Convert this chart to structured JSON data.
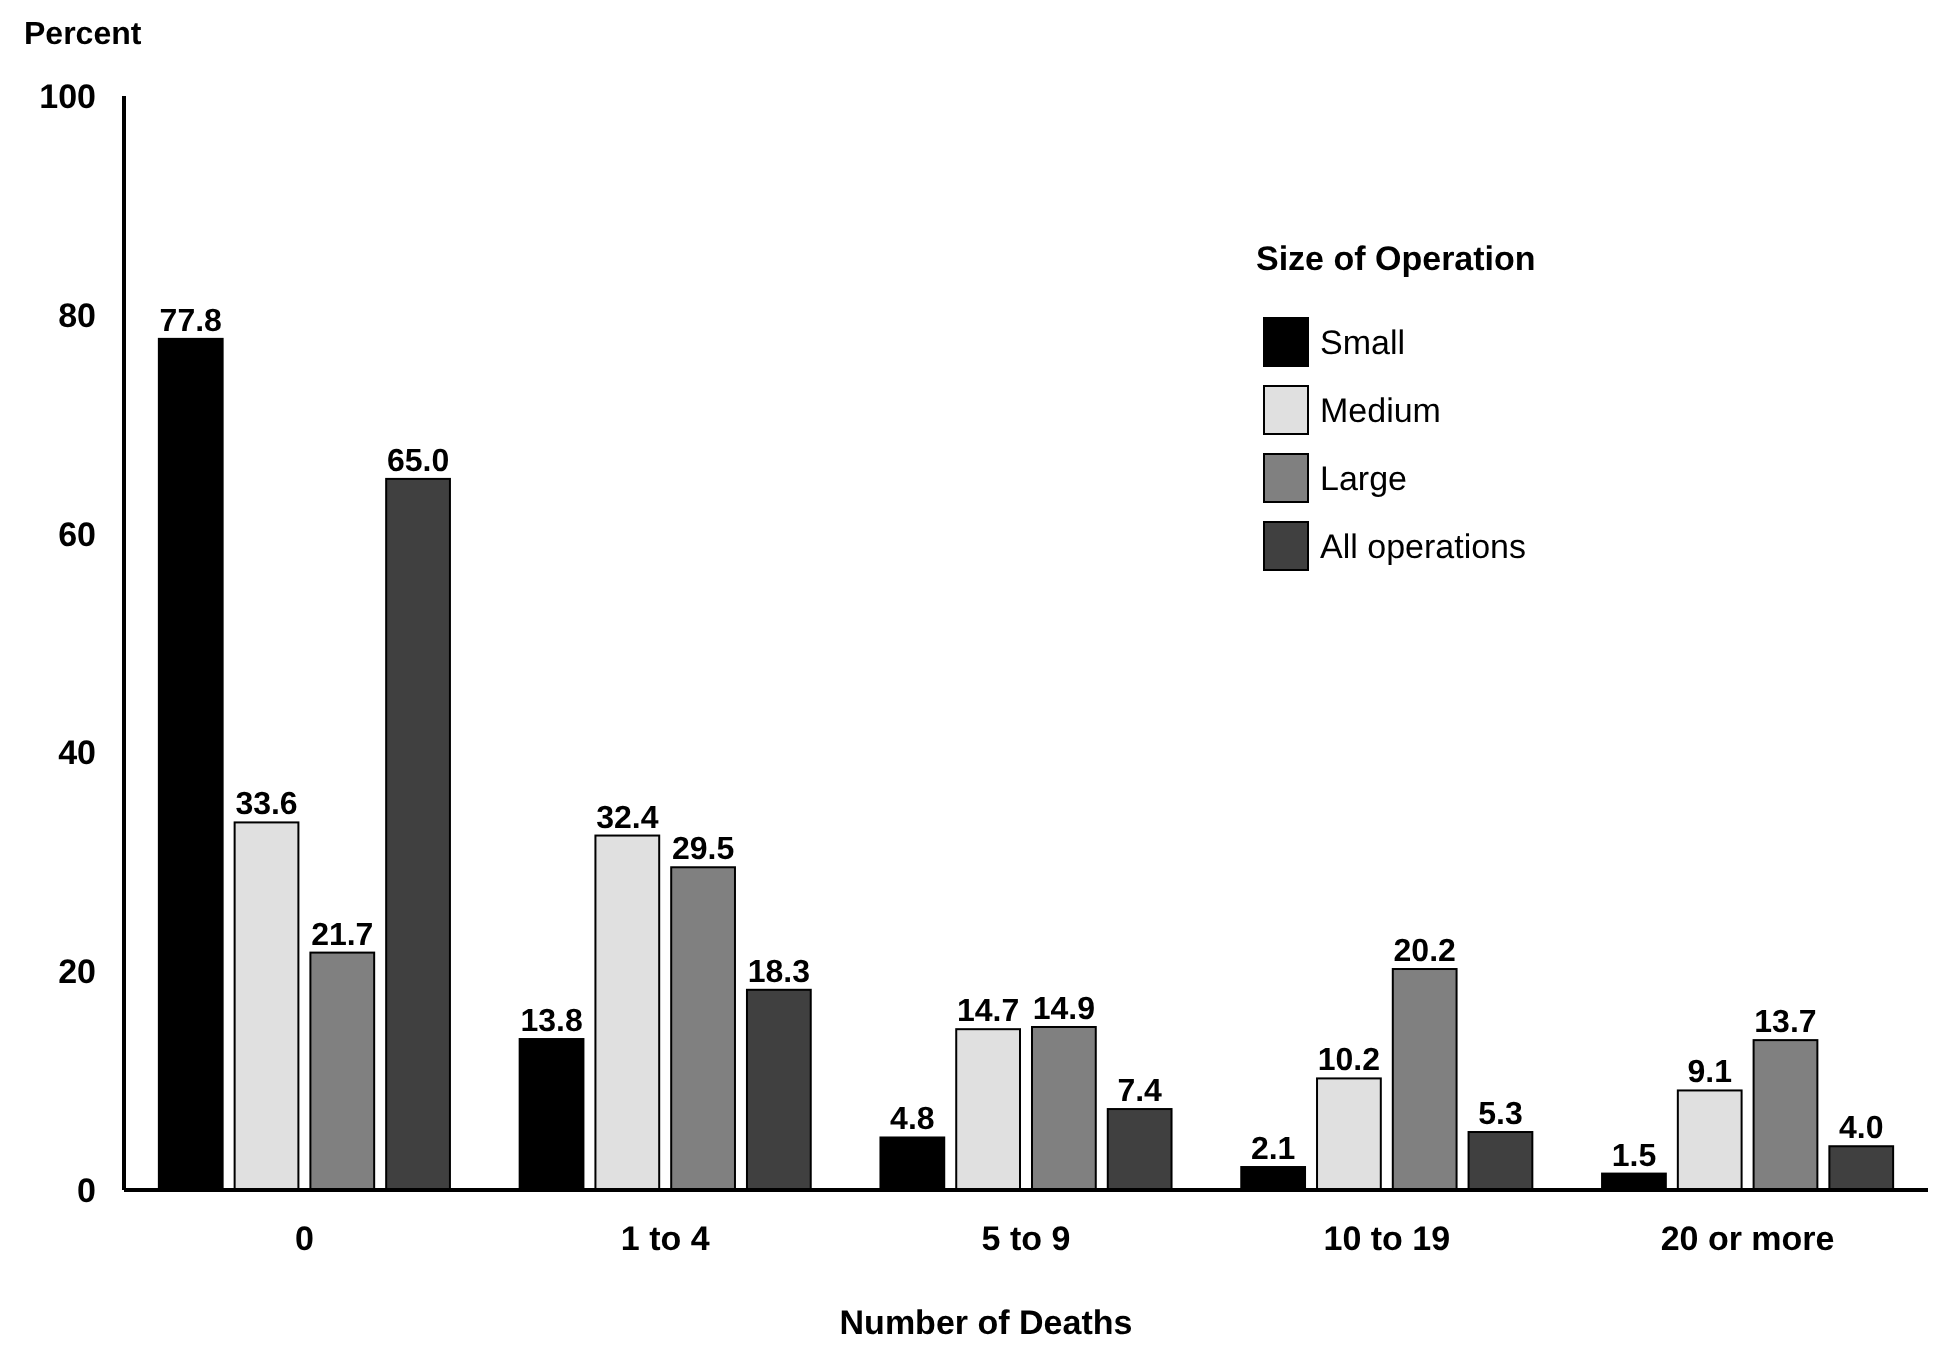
{
  "chart_data": {
    "type": "bar",
    "xlabel": "Number of Deaths",
    "ylabel": "Percent",
    "legend_title": "Size of Operation",
    "categories": [
      "0",
      "1 to 4",
      "5 to 9",
      "10 to 19",
      "20 or more"
    ],
    "series": [
      {
        "name": "Small",
        "color": "#000000",
        "values": [
          77.8,
          13.8,
          4.8,
          2.1,
          1.5
        ],
        "value_labels": [
          "77.8",
          "13.8",
          "4.8",
          "2.1",
          "1.5"
        ]
      },
      {
        "name": "Medium",
        "color": "#e0e0e0",
        "values": [
          33.6,
          32.4,
          14.7,
          10.2,
          9.1
        ],
        "value_labels": [
          "33.6",
          "32.4",
          "14.7",
          "10.2",
          "9.1"
        ]
      },
      {
        "name": "Large",
        "color": "#808080",
        "values": [
          21.7,
          29.5,
          14.9,
          20.2,
          13.7
        ],
        "value_labels": [
          "21.7",
          "29.5",
          "14.9",
          "20.2",
          "13.7"
        ]
      },
      {
        "name": "All operations",
        "color": "#404040",
        "values": [
          65.0,
          18.3,
          7.4,
          5.3,
          4.0
        ],
        "value_labels": [
          "65.0",
          "18.3",
          "7.4",
          "5.3",
          "4.0"
        ]
      }
    ],
    "ylim": [
      0,
      100
    ],
    "yticks": [
      0,
      20,
      40,
      60,
      80,
      100
    ],
    "grid": false,
    "legend": "top right"
  }
}
